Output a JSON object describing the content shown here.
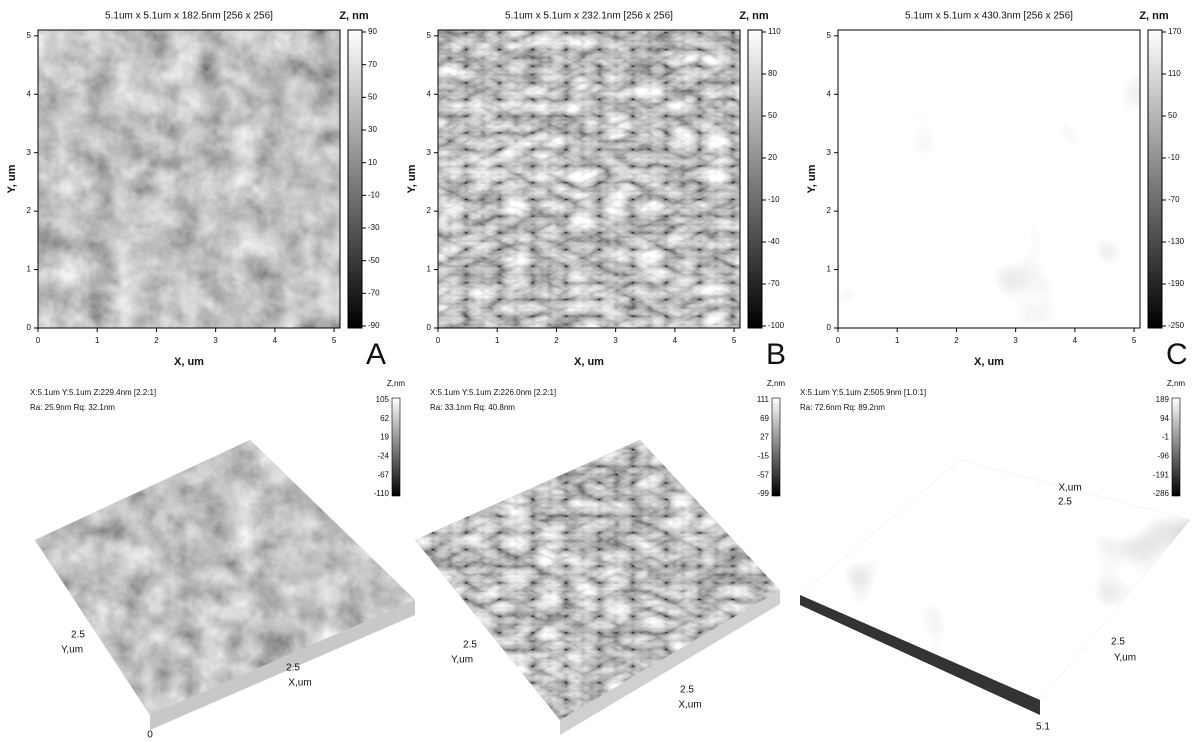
{
  "panels": [
    {
      "letter": "A",
      "title": "5.1um x 5.1um x 182.5nm [256 x 256]",
      "zlabel": "Z, nm",
      "zticks": [
        90,
        70,
        50,
        30,
        10,
        -10,
        -30,
        -50,
        -70,
        -90
      ],
      "xticks": [
        0,
        1,
        2,
        3,
        4,
        5
      ],
      "yticks": [
        0,
        1,
        2,
        3,
        4,
        5
      ],
      "xlabel": "X, um",
      "ylabel": "Y, um",
      "view3d": {
        "info": [
          "X:5.1um  Y:5.1um  Z:229.4nm [2.2:1]",
          "Ra: 25.9nm  Rq: 32.1nm"
        ],
        "zlabel": "Z,nm",
        "zticks": [
          105,
          62,
          19,
          -24,
          -67,
          -110
        ],
        "labels": [
          "2.5",
          "Y,um",
          "2.5",
          "X,um",
          "0"
        ]
      }
    },
    {
      "letter": "B",
      "title": "5.1um x 5.1um x 232.1nm [256 x 256]",
      "zlabel": "Z, nm",
      "zticks": [
        110,
        80,
        50,
        20,
        -10,
        -40,
        -70,
        -100
      ],
      "xticks": [
        0,
        1,
        2,
        3,
        4,
        5
      ],
      "yticks": [
        0,
        1,
        2,
        3,
        4,
        5
      ],
      "xlabel": "X, um",
      "ylabel": "Y, um",
      "view3d": {
        "info": [
          "X:5.1um  Y:5.1um  Z:226.0nm [2.2:1]",
          "Ra: 33.1nm  Rq: 40.8nm"
        ],
        "zlabel": "Z,nm",
        "zticks": [
          111,
          69,
          27,
          -15,
          -57,
          -99
        ],
        "labels": [
          "2.5",
          "Y,um",
          "2.5",
          "X,um"
        ]
      }
    },
    {
      "letter": "C",
      "title": "5.1um x 5.1um x 430.3nm [256 x 256]",
      "zlabel": "Z, nm",
      "zticks": [
        170,
        110,
        50,
        -10,
        -70,
        -130,
        -190,
        -250
      ],
      "xticks": [
        0,
        1,
        2,
        3,
        4,
        5
      ],
      "yticks": [
        0,
        1,
        2,
        3,
        4,
        5
      ],
      "xlabel": "X, um",
      "ylabel": "Y, um",
      "view3d": {
        "info": [
          "X:5.1um  Y:5.1um  Z:505.9nm [1.0:1]",
          "Ra: 72.6nm  Rq: 89.2nm"
        ],
        "zlabel": "Z,nm",
        "zticks": [
          189,
          94,
          -1,
          -96,
          -191,
          -286
        ],
        "labels": [
          "X,um",
          "2.5",
          "2.5",
          "Y,um",
          "5.1"
        ]
      }
    }
  ]
}
